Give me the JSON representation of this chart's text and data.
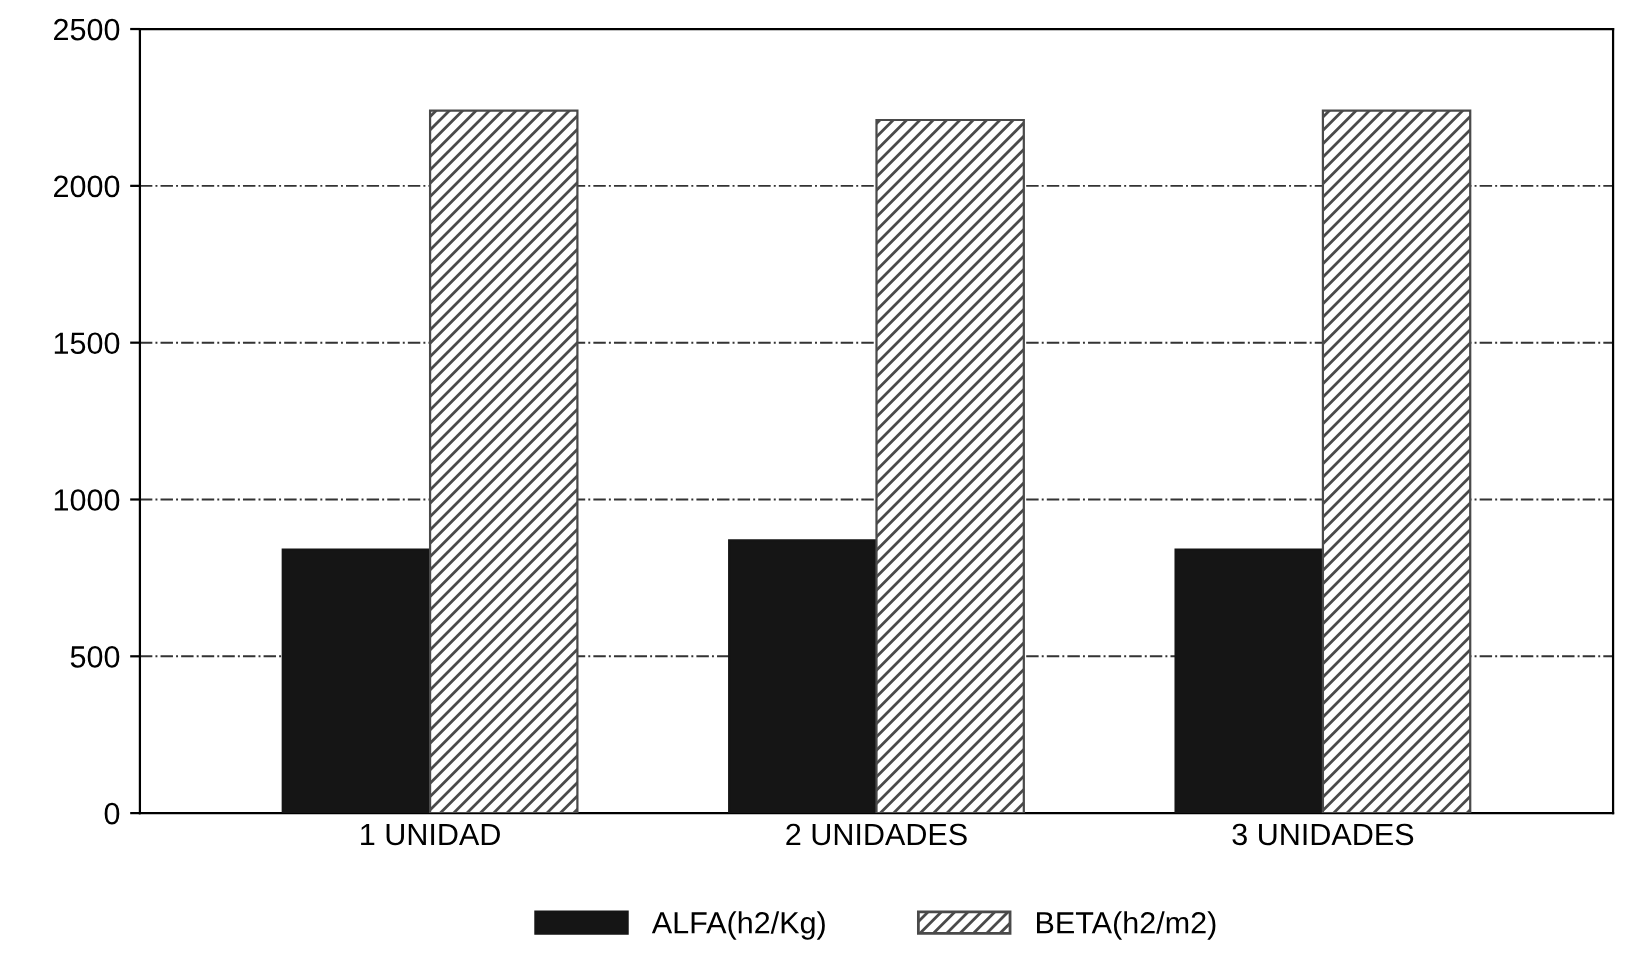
{
  "chart_data": {
    "type": "bar",
    "categories": [
      "1 UNIDAD",
      "2 UNIDADES",
      "3 UNIDADES"
    ],
    "series": [
      {
        "name": "ALFA(h2/Kg)",
        "color": "#151515",
        "values": [
          840,
          870,
          840
        ]
      },
      {
        "name": "BETA(h2/m2)",
        "color": "#4a4a4a",
        "values": [
          2240,
          2210,
          2240
        ]
      }
    ],
    "ylim": [
      0,
      2500
    ],
    "yticks": [
      0,
      500,
      1000,
      1500,
      2000,
      2500
    ],
    "grid": "y",
    "legend": "bottom"
  }
}
